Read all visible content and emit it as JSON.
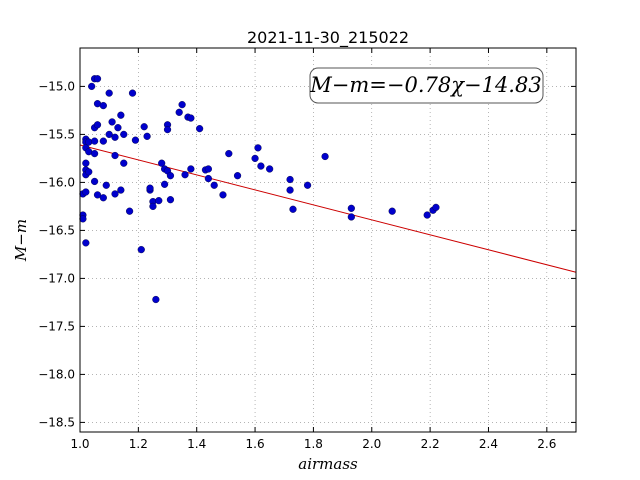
{
  "chart_data": {
    "type": "scatter",
    "title": "2021-11-30_215022",
    "xlabel": "airmass",
    "ylabel": "M−m",
    "xlim": [
      1.0,
      2.7
    ],
    "ylim": [
      -18.6,
      -14.6
    ],
    "x_ticks": [
      1.0,
      1.2,
      1.4,
      1.6,
      1.8,
      2.0,
      2.2,
      2.4,
      2.6
    ],
    "x_tick_labels": [
      "1.0",
      "1.2",
      "1.4",
      "1.6",
      "1.8",
      "2.0",
      "2.2",
      "2.4",
      "2.6"
    ],
    "y_ticks": [
      -15.0,
      -15.5,
      -16.0,
      -16.5,
      -17.0,
      -17.5,
      -18.0,
      -18.5
    ],
    "y_tick_labels": [
      "−15.0",
      "−15.5",
      "−16.0",
      "−16.5",
      "−17.0",
      "−17.5",
      "−18.0",
      "−18.5"
    ],
    "grid": true,
    "point_color": "#0000cc",
    "line_color": "#cc0000",
    "fit": {
      "slope": -0.78,
      "intercept": -14.83
    },
    "annotation": {
      "text": "M−m=−0.78χ−14.83",
      "position": "top-right"
    },
    "points": [
      [
        1.01,
        -16.12
      ],
      [
        1.01,
        -16.34
      ],
      [
        1.01,
        -16.38
      ],
      [
        1.02,
        -15.55
      ],
      [
        1.02,
        -15.58
      ],
      [
        1.02,
        -15.64
      ],
      [
        1.02,
        -15.8
      ],
      [
        1.02,
        -15.87
      ],
      [
        1.02,
        -15.92
      ],
      [
        1.02,
        -16.1
      ],
      [
        1.02,
        -16.63
      ],
      [
        1.03,
        -15.58
      ],
      [
        1.03,
        -15.68
      ],
      [
        1.03,
        -15.89
      ],
      [
        1.04,
        -15.0
      ],
      [
        1.05,
        -14.92
      ],
      [
        1.05,
        -15.57
      ],
      [
        1.05,
        -15.7
      ],
      [
        1.05,
        -15.43
      ],
      [
        1.05,
        -15.99
      ],
      [
        1.06,
        -14.92
      ],
      [
        1.06,
        -15.18
      ],
      [
        1.06,
        -15.4
      ],
      [
        1.06,
        -16.13
      ],
      [
        1.08,
        -15.2
      ],
      [
        1.08,
        -15.57
      ],
      [
        1.08,
        -16.16
      ],
      [
        1.09,
        -16.03
      ],
      [
        1.1,
        -15.07
      ],
      [
        1.1,
        -15.5
      ],
      [
        1.11,
        -15.37
      ],
      [
        1.12,
        -15.53
      ],
      [
        1.12,
        -15.72
      ],
      [
        1.12,
        -16.12
      ],
      [
        1.13,
        -15.43
      ],
      [
        1.14,
        -15.3
      ],
      [
        1.14,
        -16.08
      ],
      [
        1.15,
        -15.5
      ],
      [
        1.15,
        -15.8
      ],
      [
        1.17,
        -16.3
      ],
      [
        1.18,
        -15.07
      ],
      [
        1.19,
        -15.56
      ],
      [
        1.21,
        -16.7
      ],
      [
        1.22,
        -15.42
      ],
      [
        1.23,
        -15.52
      ],
      [
        1.24,
        -16.08
      ],
      [
        1.24,
        -16.06
      ],
      [
        1.25,
        -16.2
      ],
      [
        1.25,
        -16.25
      ],
      [
        1.26,
        -17.22
      ],
      [
        1.27,
        -16.19
      ],
      [
        1.28,
        -15.8
      ],
      [
        1.29,
        -15.86
      ],
      [
        1.29,
        -16.02
      ],
      [
        1.3,
        -15.4
      ],
      [
        1.3,
        -15.45
      ],
      [
        1.3,
        -15.88
      ],
      [
        1.31,
        -15.93
      ],
      [
        1.31,
        -16.18
      ],
      [
        1.34,
        -15.27
      ],
      [
        1.35,
        -15.19
      ],
      [
        1.36,
        -15.92
      ],
      [
        1.37,
        -15.32
      ],
      [
        1.38,
        -15.33
      ],
      [
        1.38,
        -15.86
      ],
      [
        1.41,
        -15.44
      ],
      [
        1.43,
        -15.87
      ],
      [
        1.44,
        -15.86
      ],
      [
        1.44,
        -15.96
      ],
      [
        1.46,
        -16.03
      ],
      [
        1.49,
        -16.13
      ],
      [
        1.51,
        -15.7
      ],
      [
        1.54,
        -15.93
      ],
      [
        1.6,
        -15.75
      ],
      [
        1.61,
        -15.64
      ],
      [
        1.62,
        -15.83
      ],
      [
        1.65,
        -15.86
      ],
      [
        1.72,
        -15.97
      ],
      [
        1.72,
        -16.08
      ],
      [
        1.73,
        -16.28
      ],
      [
        1.78,
        -16.03
      ],
      [
        1.84,
        -15.73
      ],
      [
        1.93,
        -16.27
      ],
      [
        1.93,
        -16.36
      ],
      [
        2.07,
        -16.3
      ],
      [
        2.19,
        -16.34
      ],
      [
        2.21,
        -16.29
      ],
      [
        2.22,
        -16.26
      ]
    ]
  }
}
